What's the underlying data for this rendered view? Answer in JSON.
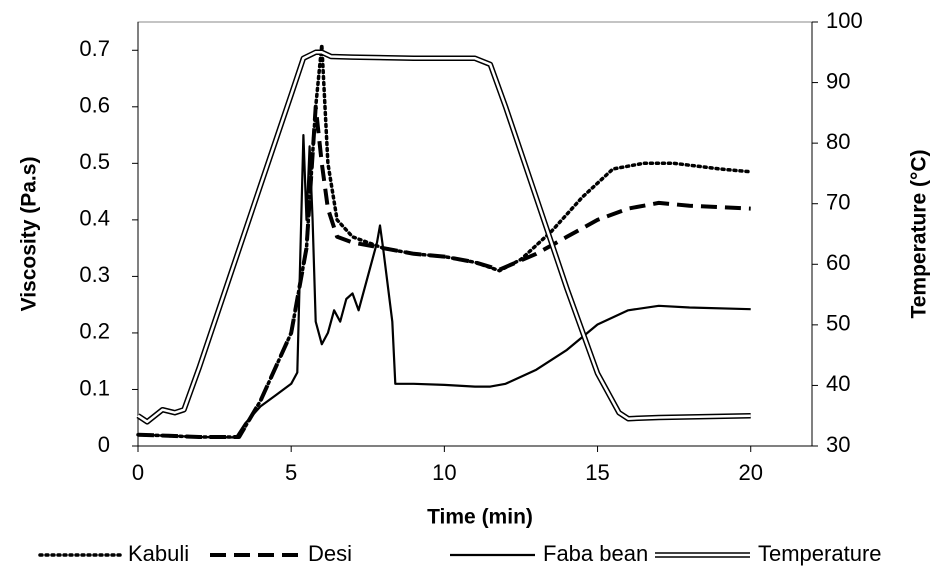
{
  "chart_data": {
    "type": "line",
    "x_label": "Time (min)",
    "y_label": "Viscosity (Pa.s)",
    "y2_label": "Temperature (°C)",
    "xlim": [
      0,
      22
    ],
    "xticks": [
      0,
      5,
      10,
      15,
      20
    ],
    "ylim": [
      0,
      0.75
    ],
    "yticks": [
      0,
      0.1,
      0.2,
      0.3,
      0.4,
      0.5,
      0.6,
      0.7
    ],
    "y2lim": [
      30,
      100
    ],
    "y2ticks": [
      30,
      40,
      50,
      60,
      70,
      80,
      90,
      100
    ],
    "legend": "bottom",
    "series": [
      {
        "name": "Kabuli",
        "color": "#000000",
        "style": "dotted",
        "x": [
          0,
          1,
          2,
          3.3,
          4,
          5,
          5.5,
          5.8,
          6,
          6.2,
          6.5,
          7,
          8,
          9,
          10,
          11,
          11.8,
          12.5,
          13.5,
          14.5,
          15.5,
          16.5,
          17.5,
          19,
          20
        ],
        "values": [
          0.02,
          0.018,
          0.016,
          0.016,
          0.08,
          0.2,
          0.35,
          0.6,
          0.71,
          0.5,
          0.4,
          0.37,
          0.35,
          0.34,
          0.335,
          0.325,
          0.31,
          0.33,
          0.38,
          0.44,
          0.49,
          0.5,
          0.5,
          0.49,
          0.485
        ]
      },
      {
        "name": "Desi",
        "color": "#000000",
        "style": "dashed",
        "x": [
          0,
          1,
          2,
          3.3,
          4,
          5,
          5.5,
          5.8,
          6,
          6.2,
          6.5,
          7,
          8,
          9,
          10,
          11,
          11.8,
          13,
          14,
          15,
          16,
          17,
          18,
          20
        ],
        "values": [
          0.02,
          0.018,
          0.016,
          0.016,
          0.08,
          0.2,
          0.35,
          0.6,
          0.5,
          0.42,
          0.37,
          0.36,
          0.35,
          0.34,
          0.335,
          0.325,
          0.312,
          0.34,
          0.37,
          0.4,
          0.42,
          0.43,
          0.425,
          0.42
        ]
      },
      {
        "name": "Faba bean",
        "color": "#000000",
        "style": "solid",
        "x": [
          0,
          1,
          2,
          3.2,
          3.5,
          4,
          4.5,
          5,
          5.2,
          5.4,
          5.5,
          5.6,
          5.7,
          5.8,
          6,
          6.2,
          6.4,
          6.6,
          6.8,
          7,
          7.2,
          7.5,
          7.8,
          7.9,
          8,
          8.3,
          8.4,
          9,
          10,
          11,
          11.5,
          12,
          13,
          14,
          15,
          16,
          17,
          18,
          20
        ],
        "values": [
          0.02,
          0.018,
          0.016,
          0.015,
          0.04,
          0.07,
          0.09,
          0.11,
          0.13,
          0.55,
          0.4,
          0.53,
          0.4,
          0.22,
          0.18,
          0.2,
          0.24,
          0.22,
          0.26,
          0.27,
          0.24,
          0.3,
          0.36,
          0.39,
          0.35,
          0.22,
          0.11,
          0.11,
          0.108,
          0.105,
          0.105,
          0.11,
          0.135,
          0.17,
          0.215,
          0.24,
          0.248,
          0.245,
          0.242
        ]
      },
      {
        "name": "Temperature",
        "color": "#000000",
        "style": "double",
        "axis": "y2",
        "x": [
          0,
          0.3,
          0.8,
          1.2,
          1.5,
          2,
          3,
          4,
          5,
          5.4,
          5.8,
          6,
          6.3,
          7,
          9,
          11,
          11.5,
          12,
          13,
          14,
          15,
          15.7,
          16,
          17,
          20
        ],
        "values": [
          35,
          34,
          36,
          35.5,
          36,
          43,
          58,
          73,
          88,
          94,
          95,
          95,
          94.3,
          94.2,
          94,
          94,
          93,
          86,
          71,
          56,
          42,
          35.5,
          34.5,
          34.7,
          35
        ]
      }
    ]
  }
}
